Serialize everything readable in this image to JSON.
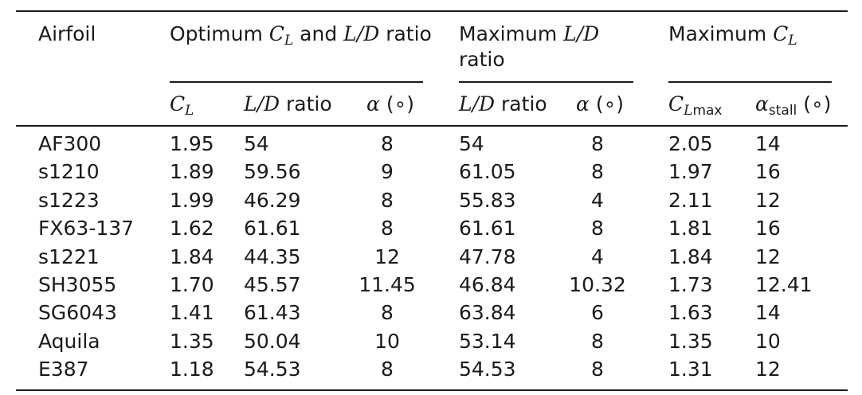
{
  "table": {
    "header": {
      "airfoil": "Airfoil",
      "group1": {
        "pre": "Optimum ",
        "c": "C",
        "c_sub": "L",
        "mid": " and ",
        "ld": "L/D",
        "post": " ratio"
      },
      "group2": {
        "pre": "Maximum ",
        "ld": "L/D",
        "line2": "ratio"
      },
      "group3": {
        "pre": "Maximum ",
        "c": "C",
        "c_sub": "L"
      },
      "sub": {
        "cl": {
          "c": "C",
          "sub": "L"
        },
        "ld1": {
          "ld": "L/D",
          "post": " ratio"
        },
        "alpha1": {
          "a": "α",
          "unit": " (∘)"
        },
        "ld2": {
          "ld": "L/D",
          "post": " ratio"
        },
        "alpha2": {
          "a": "α",
          "unit": " (∘)"
        },
        "clmax": {
          "c": "C",
          "sub_it": "L",
          "sub": "max"
        },
        "astall": {
          "a": "α",
          "sub": "stall",
          "unit": " (∘)"
        }
      }
    },
    "rows": [
      [
        "AF300",
        "1.95",
        "54",
        "8",
        "54",
        "8",
        "2.05",
        "14"
      ],
      [
        "s1210",
        "1.89",
        "59.56",
        "9",
        "61.05",
        "8",
        "1.97",
        "16"
      ],
      [
        "s1223",
        "1.99",
        "46.29",
        "8",
        "55.83",
        "4",
        "2.11",
        "12"
      ],
      [
        "FX63-137",
        "1.62",
        "61.61",
        "8",
        "61.61",
        "8",
        "1.81",
        "16"
      ],
      [
        "s1221",
        "1.84",
        "44.35",
        "12",
        "47.78",
        "4",
        "1.84",
        "12"
      ],
      [
        "SH3055",
        "1.70",
        "45.57",
        "11.45",
        "46.84",
        "10.32",
        "1.73",
        "12.41"
      ],
      [
        "SG6043",
        "1.41",
        "61.43",
        "8",
        "63.84",
        "6",
        "1.63",
        "14"
      ],
      [
        "Aquila",
        "1.35",
        "50.04",
        "10",
        "53.14",
        "8",
        "1.35",
        "10"
      ],
      [
        "E387",
        "1.18",
        "54.53",
        "8",
        "54.53",
        "8",
        "1.31",
        "12"
      ]
    ]
  }
}
